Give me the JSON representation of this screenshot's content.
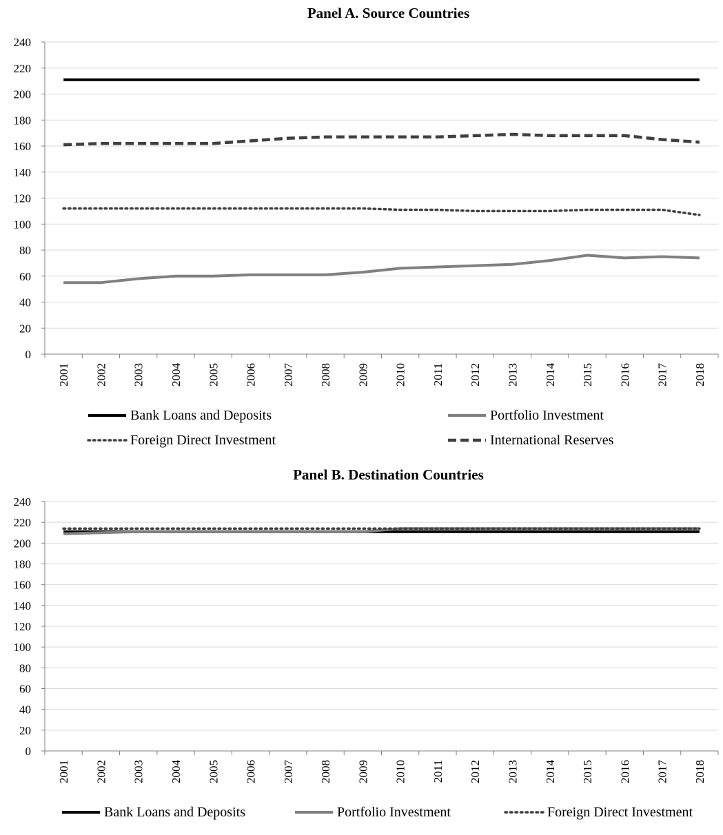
{
  "chart_data": [
    {
      "type": "line",
      "title": "Panel A. Source Countries",
      "xlabel": "",
      "ylabel": "",
      "ylim": [
        0,
        240
      ],
      "yticks": [
        0,
        20,
        40,
        60,
        80,
        100,
        120,
        140,
        160,
        180,
        200,
        220,
        240
      ],
      "grid": true,
      "legend_position": "bottom",
      "x": [
        "2001",
        "2002",
        "2003",
        "2004",
        "2005",
        "2006",
        "2007",
        "2008",
        "2009",
        "2010",
        "2011",
        "2012",
        "2013",
        "2014",
        "2015",
        "2016",
        "2017",
        "2018"
      ],
      "series": [
        {
          "name": "Bank Loans and Deposits",
          "color": "#000000",
          "style": "solid",
          "values": [
            211,
            211,
            211,
            211,
            211,
            211,
            211,
            211,
            211,
            211,
            211,
            211,
            211,
            211,
            211,
            211,
            211,
            211
          ]
        },
        {
          "name": "Portfolio Investment",
          "color": "#808080",
          "style": "solid",
          "values": [
            55,
            55,
            58,
            60,
            60,
            61,
            61,
            61,
            63,
            66,
            67,
            68,
            69,
            72,
            76,
            74,
            75,
            74
          ]
        },
        {
          "name": "Foreign Direct Investment",
          "color": "#404040",
          "style": "dotted",
          "values": [
            112,
            112,
            112,
            112,
            112,
            112,
            112,
            112,
            112,
            111,
            111,
            110,
            110,
            110,
            111,
            111,
            111,
            107
          ]
        },
        {
          "name": "International Reserves",
          "color": "#404040",
          "style": "dashed",
          "values": [
            161,
            162,
            162,
            162,
            162,
            164,
            166,
            167,
            167,
            167,
            167,
            168,
            169,
            168,
            168,
            168,
            165,
            163
          ]
        }
      ]
    },
    {
      "type": "line",
      "title": "Panel B. Destination Countries",
      "xlabel": "",
      "ylabel": "",
      "ylim": [
        0,
        240
      ],
      "yticks": [
        0,
        20,
        40,
        60,
        80,
        100,
        120,
        140,
        160,
        180,
        200,
        220,
        240
      ],
      "grid": true,
      "legend_position": "bottom",
      "x": [
        "2001",
        "2002",
        "2003",
        "2004",
        "2005",
        "2006",
        "2007",
        "2008",
        "2009",
        "2010",
        "2011",
        "2012",
        "2013",
        "2014",
        "2015",
        "2016",
        "2017",
        "2018"
      ],
      "series": [
        {
          "name": "Bank Loans and Deposits",
          "color": "#000000",
          "style": "solid",
          "values": [
            211,
            211,
            211,
            211,
            211,
            211,
            211,
            211,
            211,
            211,
            211,
            211,
            211,
            211,
            211,
            211,
            211,
            211
          ]
        },
        {
          "name": "Portfolio Investment",
          "color": "#808080",
          "style": "solid",
          "values": [
            209,
            210,
            211,
            211,
            211,
            211,
            211,
            211,
            211,
            214,
            214,
            214,
            214,
            214,
            214,
            214,
            214,
            214
          ]
        },
        {
          "name": "Foreign Direct Investment",
          "color": "#404040",
          "style": "dotted",
          "values": [
            214,
            214,
            214,
            214,
            214,
            214,
            214,
            214,
            214,
            214,
            214,
            214,
            214,
            214,
            214,
            214,
            214,
            214
          ]
        }
      ]
    }
  ]
}
